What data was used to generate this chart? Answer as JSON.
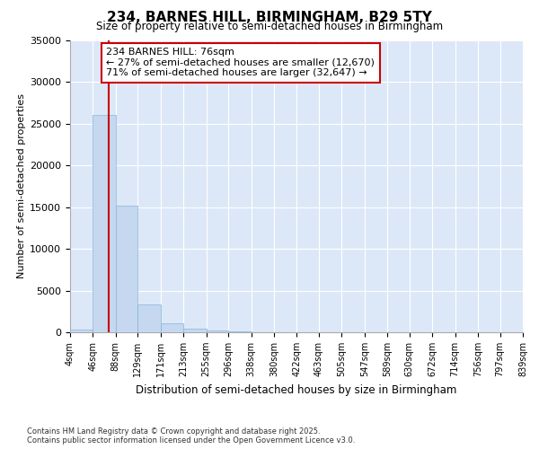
{
  "title": "234, BARNES HILL, BIRMINGHAM, B29 5TY",
  "subtitle": "Size of property relative to semi-detached houses in Birmingham",
  "xlabel": "Distribution of semi-detached houses by size in Birmingham",
  "ylabel": "Number of semi-detached properties",
  "footer_line1": "Contains HM Land Registry data © Crown copyright and database right 2025.",
  "footer_line2": "Contains public sector information licensed under the Open Government Licence v3.0.",
  "annotation_title": "234 BARNES HILL: 76sqm",
  "annotation_line2": "← 27% of semi-detached houses are smaller (12,670)",
  "annotation_line3": "71% of semi-detached houses are larger (32,647) →",
  "property_size": 76,
  "bar_edges": [
    4,
    46,
    88,
    129,
    171,
    213,
    255,
    296,
    338,
    380,
    422,
    463,
    505,
    547,
    589,
    630,
    672,
    714,
    756,
    797,
    839
  ],
  "bar_heights": [
    350,
    26100,
    15200,
    3350,
    1050,
    480,
    220,
    80,
    30,
    15,
    8,
    5,
    3,
    2,
    1,
    1,
    0,
    0,
    0,
    0
  ],
  "bar_color": "#c5d8f0",
  "bar_edge_color": "#8ab4d8",
  "vline_color": "#cc0000",
  "annotation_box_edge_color": "#cc0000",
  "background_color": "#dce8f8",
  "ylim": [
    0,
    35000
  ],
  "yticks": [
    0,
    5000,
    10000,
    15000,
    20000,
    25000,
    30000,
    35000
  ]
}
